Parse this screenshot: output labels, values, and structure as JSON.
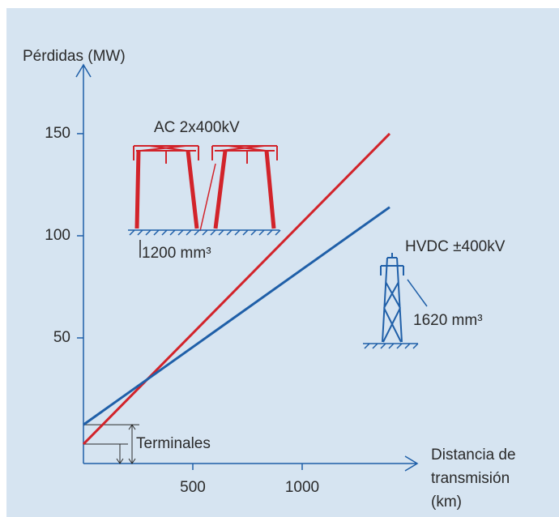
{
  "chart_data": {
    "type": "line",
    "y_label": "Pérdidas (MW)",
    "x_label": [
      "Distancia de",
      "transmisión",
      "(km)"
    ],
    "x": [
      0,
      1400
    ],
    "series": [
      {
        "name": "AC 2x400kV",
        "color": "#d2232a",
        "values": [
          -2,
          150
        ]
      },
      {
        "name": "HVDC ±400kV",
        "color": "#1f5fa8",
        "values": [
          7.5,
          114
        ]
      }
    ],
    "annotations": {
      "ac_cable": "1200 mm³",
      "dc_cable": "1620 mm³",
      "terminals": "Terminales"
    },
    "xlim": [
      0,
      1526
    ],
    "ylim": [
      -11.5,
      183.7
    ],
    "xticks": [
      500,
      1000
    ],
    "yticks": [
      50,
      100,
      150
    ]
  }
}
